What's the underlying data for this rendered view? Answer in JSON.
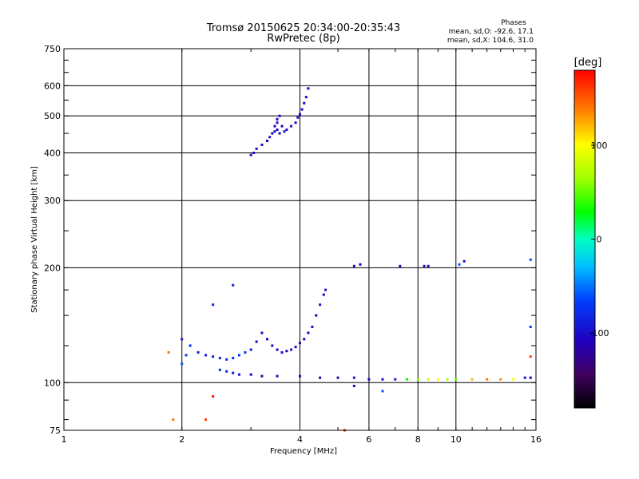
{
  "chart_data": {
    "type": "scatter",
    "title": "Tromsø 20150625 20:34:00-20:35:43",
    "subtitle": "RwPretec (8p)",
    "legend_title": "Phases",
    "stats": [
      "mean, sd,O: -92.6, 17.1",
      "mean, sd,X: 104.6, 31.0"
    ],
    "xlabel": "Frequency [MHz]",
    "ylabel": "Stationary phase Virtual Height [km]",
    "x_scale": "log",
    "y_scale": "log",
    "xlim": [
      1,
      16
    ],
    "ylim": [
      75,
      750
    ],
    "x_ticks": [
      1,
      2,
      4,
      6,
      8,
      10,
      16
    ],
    "y_ticks": [
      75,
      100,
      200,
      300,
      400,
      500,
      600,
      750
    ],
    "x_gridlines": [
      2,
      4,
      6,
      8,
      10
    ],
    "y_gridlines": [
      100,
      200,
      300,
      400,
      500,
      600
    ],
    "colorbar": {
      "label": "[deg]",
      "range": [
        -180,
        180
      ],
      "ticks": [
        -100,
        0,
        100
      ]
    },
    "series": [
      {
        "points": [
          [
            3.0,
            395,
            -110
          ],
          [
            3.05,
            400,
            -105
          ],
          [
            3.1,
            410,
            -100
          ],
          [
            3.2,
            420,
            -110
          ],
          [
            3.3,
            430,
            -105
          ],
          [
            3.35,
            440,
            -100
          ],
          [
            3.4,
            450,
            -110
          ],
          [
            3.45,
            455,
            -95
          ],
          [
            3.5,
            460,
            -105
          ],
          [
            3.55,
            450,
            -100
          ],
          [
            3.45,
            470,
            -110
          ],
          [
            3.5,
            480,
            -95
          ],
          [
            3.5,
            490,
            -105
          ],
          [
            3.55,
            500,
            -100
          ],
          [
            3.6,
            470,
            -110
          ],
          [
            3.65,
            455,
            -95
          ],
          [
            3.7,
            460,
            -105
          ],
          [
            3.8,
            470,
            -100
          ],
          [
            3.9,
            480,
            -110
          ],
          [
            3.95,
            495,
            -95
          ],
          [
            4.0,
            505,
            -105
          ],
          [
            4.05,
            520,
            -100
          ],
          [
            4.1,
            540,
            -110
          ],
          [
            4.15,
            560,
            -95
          ],
          [
            4.2,
            590,
            -105
          ]
        ]
      },
      {
        "points": [
          [
            2.0,
            112,
            -60
          ],
          [
            2.05,
            118,
            -70
          ],
          [
            2.1,
            125,
            -80
          ],
          [
            2.2,
            120,
            -90
          ],
          [
            2.3,
            118,
            -95
          ],
          [
            2.4,
            117,
            -90
          ],
          [
            2.5,
            116,
            -85
          ],
          [
            2.6,
            115,
            -80
          ],
          [
            2.7,
            116,
            -75
          ],
          [
            2.8,
            118,
            -70
          ],
          [
            2.9,
            120,
            -75
          ],
          [
            3.0,
            122,
            -95
          ],
          [
            3.1,
            128,
            -100
          ],
          [
            3.2,
            135,
            -105
          ],
          [
            3.3,
            130,
            -110
          ],
          [
            3.4,
            125,
            -100
          ],
          [
            3.5,
            122,
            -105
          ],
          [
            3.6,
            120,
            -100
          ],
          [
            3.7,
            121,
            -110
          ],
          [
            3.8,
            122,
            -95
          ],
          [
            3.9,
            124,
            -105
          ],
          [
            4.0,
            127,
            -100
          ],
          [
            4.1,
            130,
            -110
          ],
          [
            4.2,
            135,
            -105
          ],
          [
            4.3,
            140,
            -100
          ],
          [
            4.4,
            150,
            -110
          ],
          [
            4.5,
            160,
            -95
          ],
          [
            4.6,
            170,
            -105
          ],
          [
            4.65,
            175,
            -100
          ],
          [
            2.7,
            180,
            -85
          ],
          [
            2.4,
            160,
            -80
          ],
          [
            2.0,
            130,
            -90
          ]
        ]
      },
      {
        "points": [
          [
            2.5,
            108,
            -80
          ],
          [
            2.6,
            107,
            -85
          ],
          [
            2.7,
            106,
            -90
          ],
          [
            2.8,
            105,
            -95
          ],
          [
            3.0,
            105,
            -110
          ],
          [
            3.2,
            104,
            -115
          ],
          [
            3.5,
            104,
            -110
          ],
          [
            4.0,
            104,
            -115
          ],
          [
            4.5,
            103,
            -110
          ],
          [
            5.0,
            103,
            -105
          ],
          [
            5.5,
            103,
            -100
          ],
          [
            6.0,
            102,
            -105
          ],
          [
            6.5,
            102,
            -95
          ],
          [
            7.0,
            102,
            -90
          ],
          [
            7.5,
            102,
            30
          ],
          [
            8.0,
            102,
            60
          ],
          [
            8.5,
            102,
            80
          ],
          [
            9.0,
            102,
            100
          ],
          [
            9.5,
            102,
            70
          ],
          [
            10.0,
            102,
            50
          ],
          [
            11.0,
            102,
            120
          ],
          [
            12.0,
            102,
            140
          ],
          [
            13.0,
            102,
            130
          ],
          [
            14.0,
            102,
            100
          ],
          [
            15.0,
            103,
            -100
          ],
          [
            15.5,
            103,
            -110
          ]
        ]
      },
      {
        "points": [
          [
            5.5,
            202,
            -100
          ],
          [
            5.7,
            204,
            -110
          ],
          [
            7.2,
            202,
            -105
          ],
          [
            8.3,
            202,
            -100
          ],
          [
            8.5,
            202,
            -110
          ],
          [
            10.2,
            204,
            -60
          ],
          [
            10.5,
            208,
            -100
          ],
          [
            15.5,
            210,
            -60
          ],
          [
            15.5,
            140,
            -70
          ]
        ]
      },
      {
        "points": [
          [
            1.85,
            120,
            140
          ],
          [
            1.9,
            80,
            140
          ],
          [
            2.3,
            80,
            160
          ],
          [
            2.4,
            92,
            175
          ],
          [
            5.5,
            98,
            -100
          ],
          [
            6.5,
            95,
            -60
          ],
          [
            5.2,
            75,
            175
          ],
          [
            15.5,
            117,
            160
          ]
        ]
      }
    ]
  }
}
